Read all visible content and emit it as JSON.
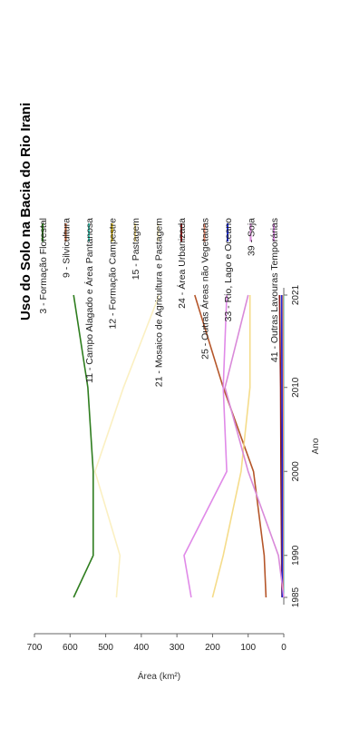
{
  "chart_data": {
    "type": "line",
    "orientation": "rotated-90-clockwise",
    "title": "Uso do Solo na Bacia do Rio Irani",
    "xlabel": "Ano",
    "ylabel": "Área (km²)",
    "x": [
      "1985",
      "1990",
      "2000",
      "2010",
      "2021"
    ],
    "ylim": [
      0,
      700
    ],
    "yticks": [
      0,
      100,
      200,
      300,
      400,
      500,
      600,
      700
    ],
    "grid": false,
    "legend_position": "right",
    "series": [
      {
        "name": "3 - Formação Florestal",
        "color": "#2e7d1e",
        "values": [
          590,
          535,
          535,
          550,
          590
        ]
      },
      {
        "name": "9 - Silvicultura",
        "color": "#b5562a",
        "values": [
          50,
          55,
          85,
          170,
          250
        ]
      },
      {
        "name": "11 - Campo Alagado e Área Pantanosa",
        "color": "#3ec9b5",
        "values": [
          1,
          1,
          1,
          1,
          1
        ]
      },
      {
        "name": "12 - Formação Campestre",
        "color": "#d9b300",
        "values": [
          3,
          3,
          3,
          3,
          3
        ]
      },
      {
        "name": "15 - Pastagem",
        "color": "#f5dc8a",
        "values": [
          200,
          170,
          120,
          95,
          95
        ]
      },
      {
        "name": "21 - Mosaico de Agricultura e Pastagem",
        "color": "#fbf0c2",
        "values": [
          470,
          460,
          530,
          450,
          350
        ]
      },
      {
        "name": "24 - Área Urbanizada",
        "color": "#8b1a1a",
        "values": [
          5,
          6,
          8,
          9,
          12
        ]
      },
      {
        "name": "25 - Outras Áreas não Vegetadas",
        "color": "#f28b6e",
        "values": [
          2,
          2,
          2,
          2,
          3
        ]
      },
      {
        "name": "33 - Rio, Lago e Oceano",
        "color": "#1b2bdc",
        "values": [
          4,
          4,
          4,
          5,
          6
        ]
      },
      {
        "name": "39 - Soja",
        "color": "#d98ad9",
        "values": [
          0,
          15,
          100,
          165,
          100
        ]
      },
      {
        "name": "41 - Outras Lavouras Temporárias",
        "color": "#e08ae8",
        "values": [
          260,
          280,
          160,
          170,
          160
        ]
      }
    ]
  }
}
